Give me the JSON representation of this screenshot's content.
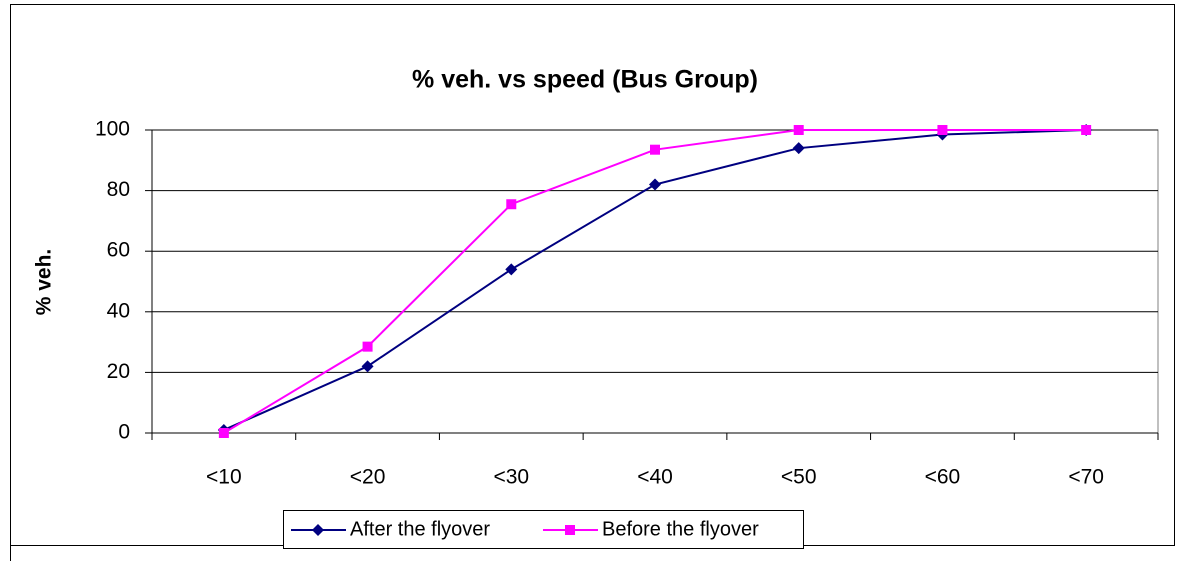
{
  "chart_data": {
    "type": "line",
    "title": "% veh. vs speed (Bus Group)",
    "y_label": "% veh.",
    "categories": [
      "<10",
      "<20",
      "<30",
      "<40",
      "<50",
      "<60",
      "<70"
    ],
    "series": [
      {
        "name": "After the flyover",
        "color": "#000080",
        "marker": "diamond",
        "values": [
          1,
          22,
          54,
          82,
          94,
          98.5,
          100
        ]
      },
      {
        "name": "Before the flyover",
        "color": "#ff00ff",
        "marker": "square",
        "values": [
          0,
          28.5,
          75.5,
          93.5,
          100,
          100,
          100
        ]
      }
    ],
    "ylim": [
      0,
      100
    ],
    "yticks": [
      0,
      20,
      40,
      60,
      80,
      100
    ],
    "grid": true,
    "legend": "bottom"
  }
}
